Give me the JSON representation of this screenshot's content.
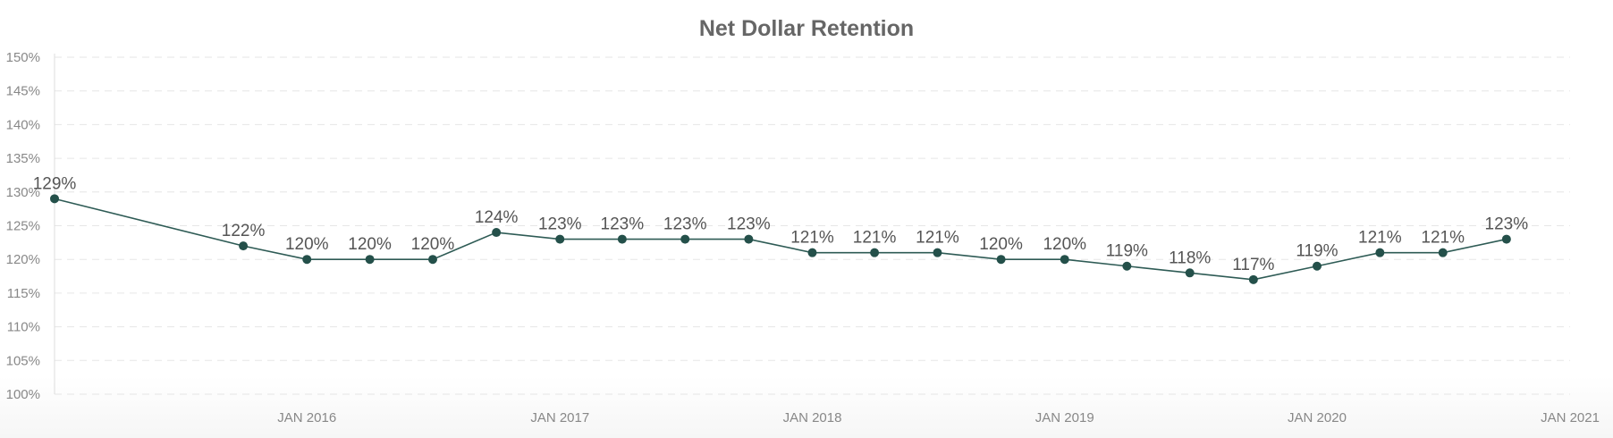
{
  "chart_data": {
    "type": "line",
    "title": "Net Dollar Retention",
    "xlabel": "",
    "ylabel": "",
    "ylim": [
      100,
      150
    ],
    "yticks": [
      100,
      105,
      110,
      115,
      120,
      125,
      130,
      135,
      140,
      145,
      150
    ],
    "ytick_format": "%",
    "xlim": [
      "2015-01-01",
      "2021-01-01"
    ],
    "xticks": [
      {
        "date": "2016-01-01",
        "label": "JAN 2016"
      },
      {
        "date": "2017-01-01",
        "label": "JAN 2017"
      },
      {
        "date": "2018-01-01",
        "label": "JAN 2018"
      },
      {
        "date": "2019-01-01",
        "label": "JAN 2019"
      },
      {
        "date": "2020-01-01",
        "label": "JAN 2020"
      },
      {
        "date": "2021-01-01",
        "label": "JAN 2021"
      }
    ],
    "grid": true,
    "series": [
      {
        "points": [
          {
            "x": "2015-01-01",
            "y": 129,
            "label": "129%"
          },
          {
            "x": "2015-10-01",
            "y": 122,
            "label": "122%"
          },
          {
            "x": "2016-01-01",
            "y": 120,
            "label": "120%"
          },
          {
            "x": "2016-04-01",
            "y": 120,
            "label": "120%"
          },
          {
            "x": "2016-07-01",
            "y": 120,
            "label": "120%"
          },
          {
            "x": "2016-10-01",
            "y": 124,
            "label": "124%"
          },
          {
            "x": "2017-01-01",
            "y": 123,
            "label": "123%"
          },
          {
            "x": "2017-04-01",
            "y": 123,
            "label": "123%"
          },
          {
            "x": "2017-07-01",
            "y": 123,
            "label": "123%"
          },
          {
            "x": "2017-10-01",
            "y": 123,
            "label": "123%"
          },
          {
            "x": "2018-01-01",
            "y": 121,
            "label": "121%"
          },
          {
            "x": "2018-04-01",
            "y": 121,
            "label": "121%"
          },
          {
            "x": "2018-07-01",
            "y": 121,
            "label": "121%"
          },
          {
            "x": "2018-10-01",
            "y": 120,
            "label": "120%"
          },
          {
            "x": "2019-01-01",
            "y": 120,
            "label": "120%"
          },
          {
            "x": "2019-04-01",
            "y": 119,
            "label": "119%"
          },
          {
            "x": "2019-07-01",
            "y": 118,
            "label": "118%"
          },
          {
            "x": "2019-10-01",
            "y": 117,
            "label": "117%"
          },
          {
            "x": "2020-01-01",
            "y": 119,
            "label": "119%"
          },
          {
            "x": "2020-04-01",
            "y": 121,
            "label": "121%"
          },
          {
            "x": "2020-07-01",
            "y": 121,
            "label": "121%"
          },
          {
            "x": "2020-10-01",
            "y": 123,
            "label": "123%"
          }
        ]
      }
    ],
    "colors": {
      "line": "#2e5b55",
      "marker": "#24504a",
      "grid": "#e6e6e6",
      "axis": "#dddddd"
    }
  }
}
